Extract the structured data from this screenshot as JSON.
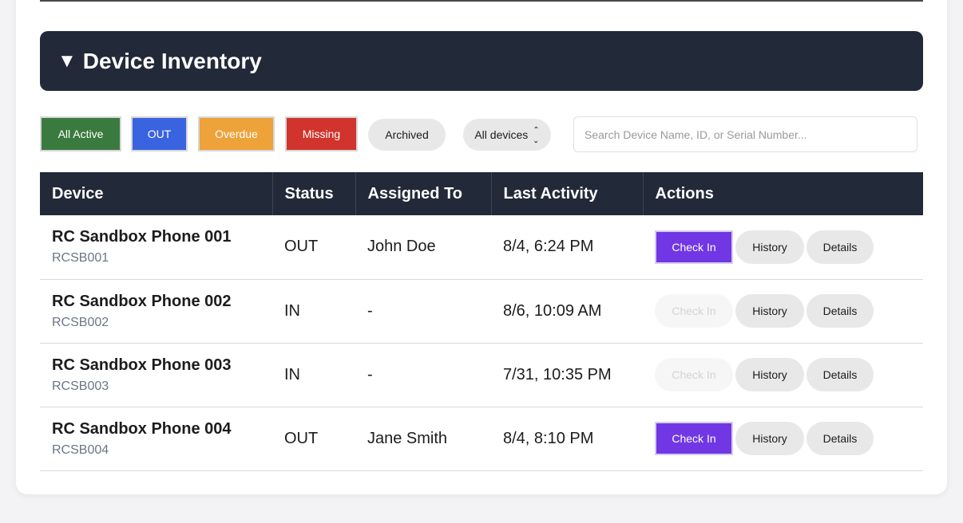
{
  "section": {
    "title": "Device Inventory",
    "toggle_glyph": "▼"
  },
  "filters": {
    "all_active": "All Active",
    "out": "OUT",
    "overdue": "Overdue",
    "missing": "Missing",
    "archived": "Archived",
    "device_select": "All devices",
    "search_placeholder": "Search Device Name, ID, or Serial Number...",
    "colors": {
      "all_active": "#3b7a3f",
      "out": "#3a63e0",
      "overdue": "#eea23a",
      "missing": "#d0342c"
    }
  },
  "table": {
    "headers": [
      "Device",
      "Status",
      "Assigned To",
      "Last Activity",
      "Actions"
    ],
    "rows": [
      {
        "name": "RC Sandbox Phone 001",
        "id": "RCSB001",
        "status": "OUT",
        "assigned": "John Doe",
        "last": "8/4, 6:24 PM",
        "checkin_enabled": true
      },
      {
        "name": "RC Sandbox Phone 002",
        "id": "RCSB002",
        "status": "IN",
        "assigned": "-",
        "last": "8/6, 10:09 AM",
        "checkin_enabled": false
      },
      {
        "name": "RC Sandbox Phone 003",
        "id": "RCSB003",
        "status": "IN",
        "assigned": "-",
        "last": "7/31, 10:35 PM",
        "checkin_enabled": false
      },
      {
        "name": "RC Sandbox Phone 004",
        "id": "RCSB004",
        "status": "OUT",
        "assigned": "Jane Smith",
        "last": "8/4, 8:10 PM",
        "checkin_enabled": true
      }
    ],
    "actions": {
      "check_in": "Check In",
      "history": "History",
      "details": "Details"
    }
  }
}
